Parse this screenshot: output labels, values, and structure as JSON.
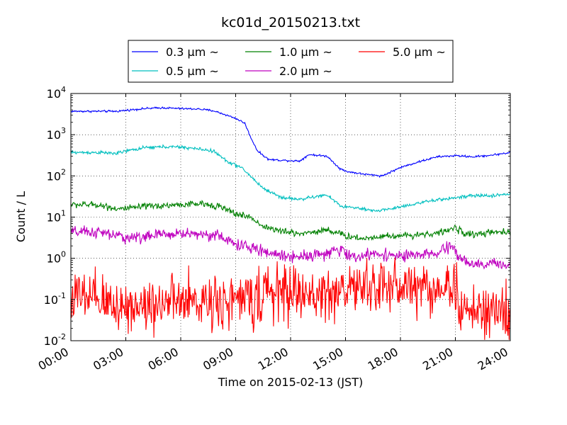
{
  "chart_data": {
    "type": "line",
    "title": "kc01d_20150213.txt",
    "xlabel": "Time on 2015-02-13 (JST)",
    "ylabel": "Count / L",
    "x_ticks": [
      "00:00",
      "03:00",
      "06:00",
      "09:00",
      "12:00",
      "15:00",
      "18:00",
      "21:00",
      "24:00"
    ],
    "x_range_hours": [
      0,
      24
    ],
    "y_scale": "log",
    "ylim": [
      0.01,
      10000
    ],
    "y_ticks": [
      {
        "base": "10",
        "exp": "-2"
      },
      {
        "base": "10",
        "exp": "-1"
      },
      {
        "base": "10",
        "exp": "0"
      },
      {
        "base": "10",
        "exp": "1"
      },
      {
        "base": "10",
        "exp": "2"
      },
      {
        "base": "10",
        "exp": "3"
      },
      {
        "base": "10",
        "exp": "4"
      }
    ],
    "grid": true,
    "legend_position": "top",
    "series": [
      {
        "name": "0.3 μm ~",
        "color": "#0000ff",
        "noise": 0.012,
        "x": [
          0,
          1.5,
          2.5,
          3,
          4,
          5,
          6,
          7,
          7.8,
          8.3,
          9.0,
          9.5,
          9.8,
          10.2,
          10.8,
          11.5,
          12.5,
          13,
          14,
          14.7,
          15,
          16,
          17,
          18,
          19,
          20,
          21,
          22,
          23,
          24
        ],
        "y": [
          3700,
          3700,
          3700,
          3900,
          4300,
          4500,
          4300,
          4200,
          3800,
          3200,
          2500,
          1900,
          900,
          400,
          250,
          240,
          230,
          330,
          300,
          150,
          130,
          110,
          100,
          160,
          220,
          290,
          310,
          290,
          320,
          370
        ]
      },
      {
        "name": "0.5 μm ~",
        "color": "#00bfbf",
        "noise": 0.02,
        "x": [
          0,
          1.5,
          2.5,
          3,
          4,
          5,
          6,
          7,
          7.8,
          8.5,
          9.3,
          9.8,
          10.5,
          11.5,
          12.5,
          13.5,
          14,
          14.8,
          15.5,
          16.5,
          17.5,
          19,
          20.5,
          22,
          23,
          24
        ],
        "y": [
          370,
          370,
          350,
          400,
          480,
          510,
          500,
          450,
          400,
          230,
          160,
          100,
          50,
          30,
          27,
          32,
          34,
          18,
          17,
          14,
          16,
          22,
          28,
          33,
          33,
          37
        ]
      },
      {
        "name": "1.0 μm ~",
        "color": "#008000",
        "noise": 0.04,
        "x": [
          0,
          1.5,
          2.5,
          3,
          4,
          5,
          6,
          7,
          8,
          9,
          9.8,
          10.5,
          11.5,
          12.5,
          13.5,
          14,
          15,
          16,
          17,
          18,
          19,
          20,
          21,
          21.5,
          22,
          23,
          24
        ],
        "y": [
          20,
          20,
          16,
          16,
          18,
          19,
          20,
          21,
          19,
          12,
          10,
          6,
          4.5,
          4,
          4.5,
          5,
          3.5,
          3,
          3.5,
          3.5,
          3.8,
          4,
          5.5,
          4,
          3.8,
          4.2,
          4.3
        ]
      },
      {
        "name": "2.0 μm ~",
        "color": "#bf00bf",
        "noise": 0.07,
        "x": [
          0,
          1.5,
          2.5,
          3,
          4,
          5,
          6,
          7,
          8,
          9,
          10,
          11,
          12,
          13,
          14,
          14.8,
          15.5,
          16,
          17,
          18,
          19,
          20,
          20.8,
          21.3,
          22,
          23,
          24
        ],
        "y": [
          4.3,
          4.3,
          3.5,
          3.2,
          3.3,
          3.8,
          4.0,
          3.9,
          3.6,
          2.2,
          1.7,
          1.3,
          1.1,
          1.2,
          1.3,
          1.6,
          1.0,
          1.2,
          1.3,
          1.1,
          1.2,
          1.3,
          2.0,
          1.0,
          0.65,
          0.75,
          0.7
        ]
      },
      {
        "name": "5.0 μm ~",
        "color": "#ff0000",
        "noise": 0.33,
        "x": [
          0,
          1,
          2,
          3,
          4,
          5,
          6,
          7,
          8,
          9,
          10,
          11,
          12,
          13,
          14,
          15,
          16,
          17,
          18,
          19,
          20,
          21,
          21.3,
          22,
          23,
          24
        ],
        "y": [
          0.12,
          0.1,
          0.08,
          0.07,
          0.07,
          0.09,
          0.08,
          0.09,
          0.1,
          0.09,
          0.11,
          0.15,
          0.15,
          0.12,
          0.14,
          0.18,
          0.2,
          0.2,
          0.22,
          0.2,
          0.18,
          0.22,
          0.05,
          0.05,
          0.05,
          0.05
        ]
      }
    ]
  }
}
